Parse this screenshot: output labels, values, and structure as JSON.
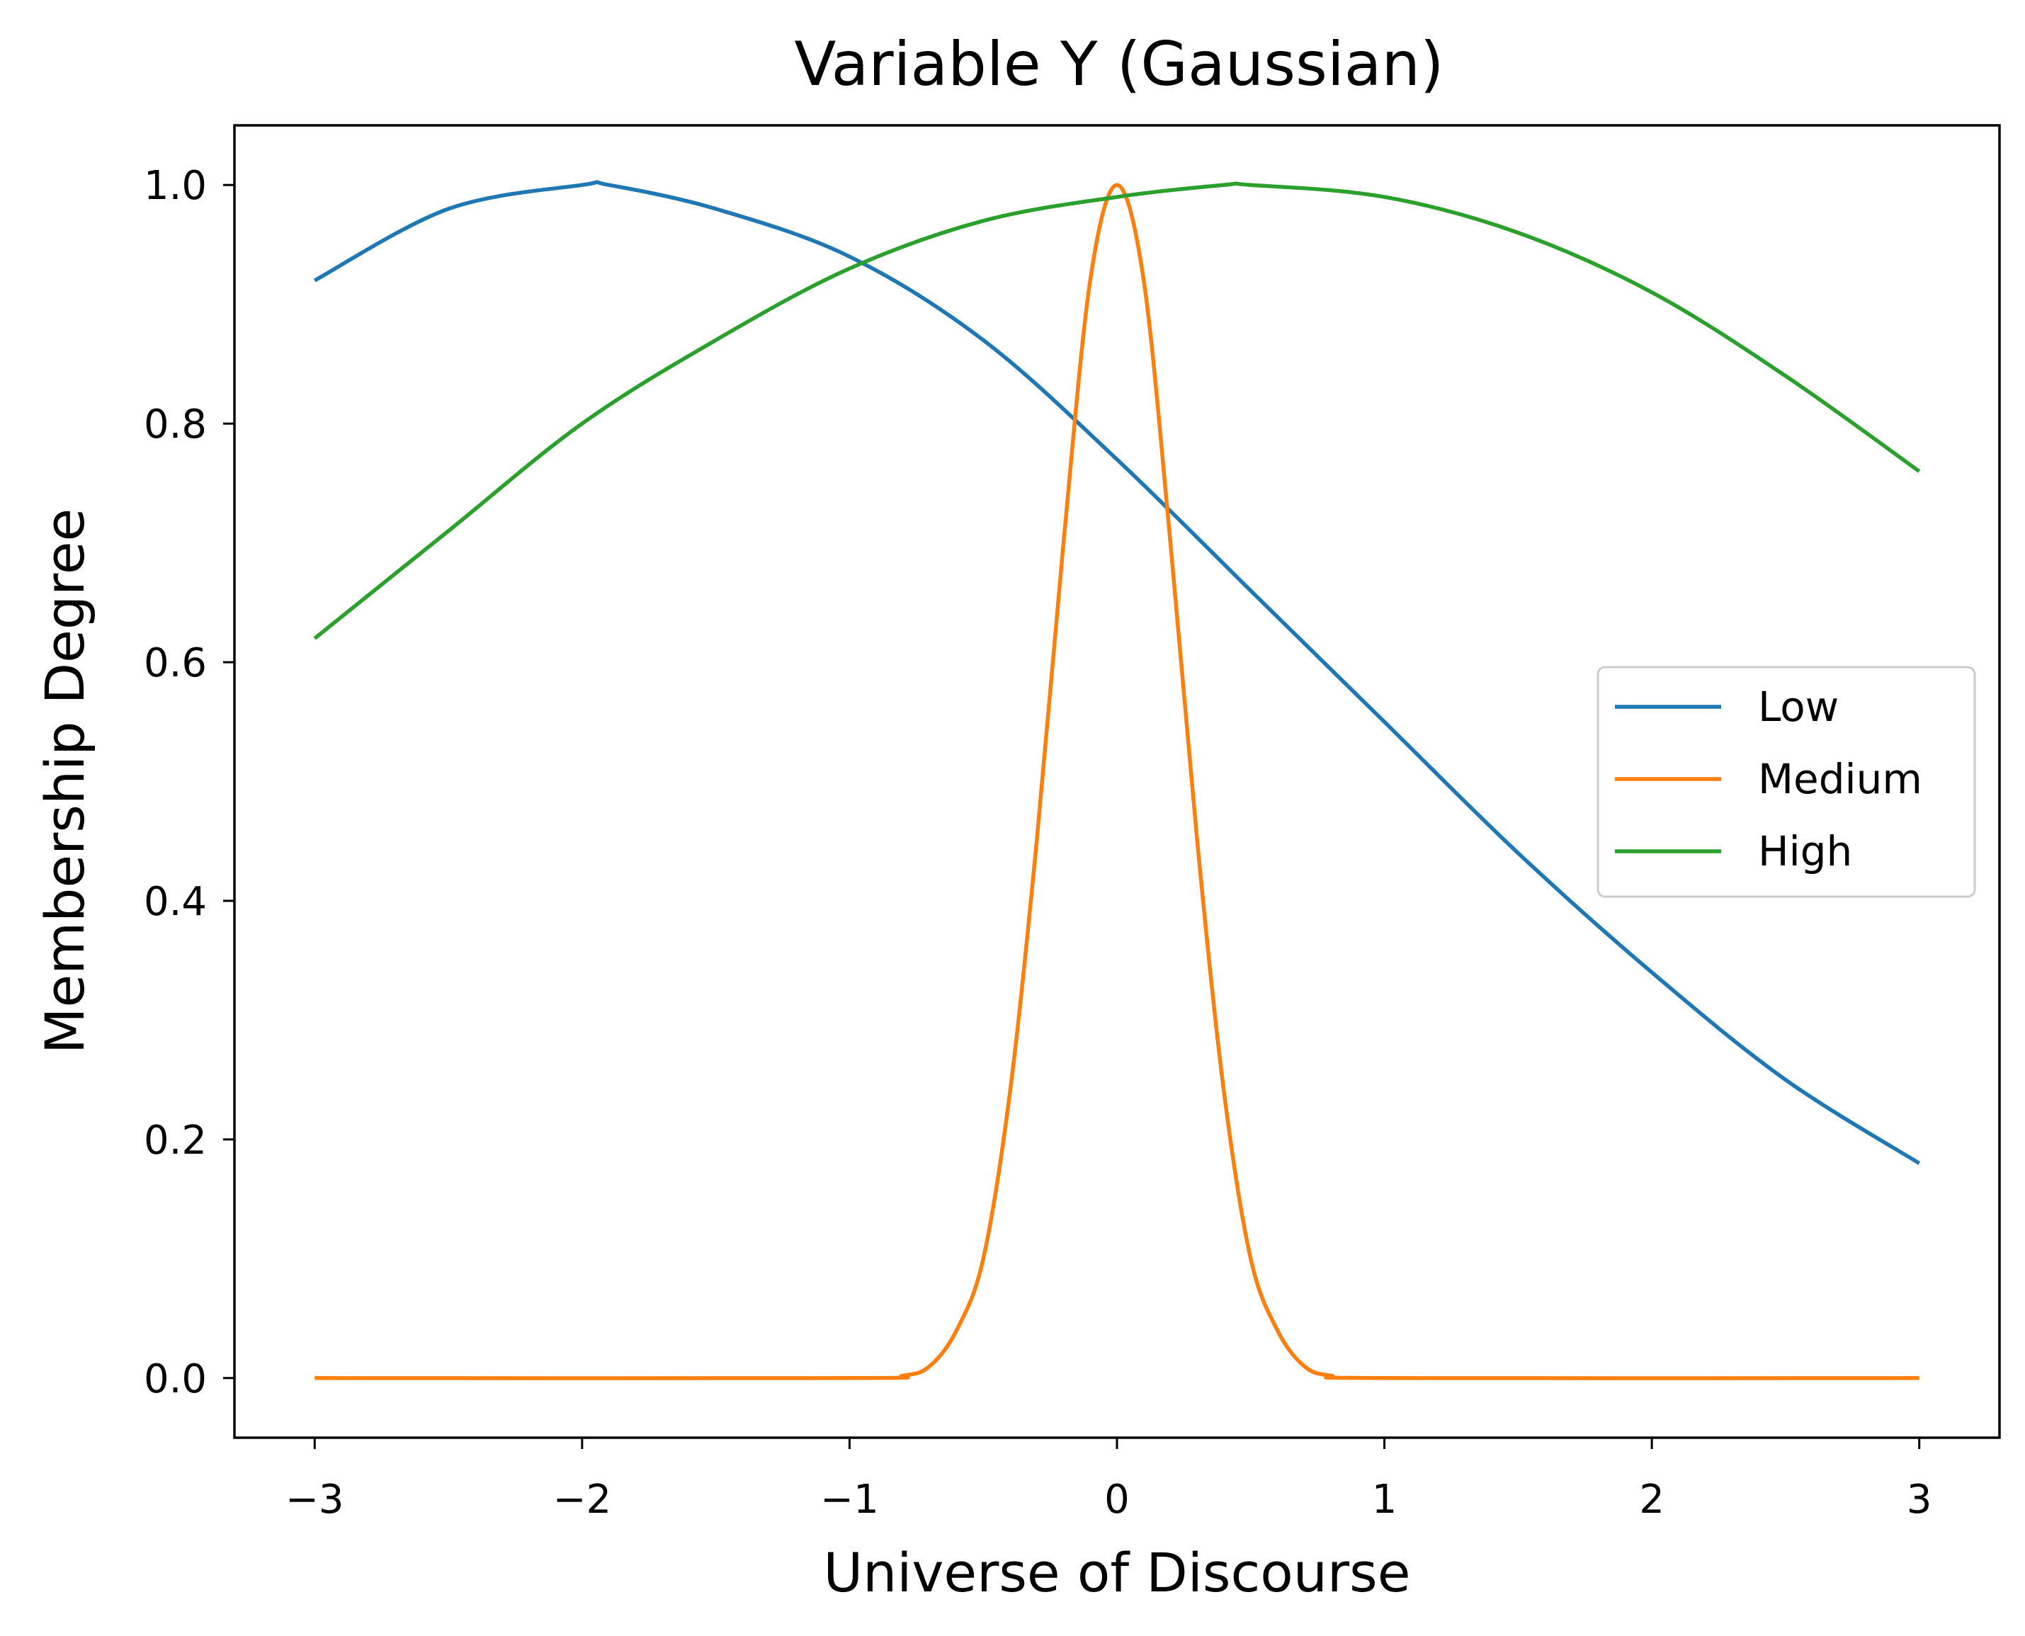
{
  "chart_data": {
    "type": "line",
    "title": "Variable Y (Gaussian)",
    "xlabel": "Universe of Discourse",
    "ylabel": "Membership Degree",
    "xlim": [
      -3.3,
      3.3
    ],
    "ylim": [
      -0.05,
      1.05
    ],
    "xticks": [
      -3,
      -2,
      -1,
      0,
      1,
      2,
      3
    ],
    "xtick_labels": [
      "−3",
      "−2",
      "−1",
      "0",
      "1",
      "2",
      "3"
    ],
    "yticks": [
      0.0,
      0.2,
      0.4,
      0.6,
      0.8,
      1.0
    ],
    "ytick_labels": [
      "0.0",
      "0.2",
      "0.4",
      "0.6",
      "0.8",
      "1.0"
    ],
    "grid": false,
    "legend_position": "center-right",
    "series": [
      {
        "name": "Low",
        "color": "#1f77b4",
        "x": [
          -3.0,
          -2.5,
          -2.0,
          -1.9,
          -1.5,
          -1.0,
          -0.5,
          0.0,
          0.5,
          1.0,
          1.5,
          2.0,
          2.5,
          3.0
        ],
        "y": [
          0.92,
          0.98,
          1.0,
          1.0,
          0.98,
          0.94,
          0.87,
          0.77,
          0.66,
          0.55,
          0.44,
          0.34,
          0.25,
          0.18
        ]
      },
      {
        "name": "Medium",
        "color": "#ff7f0e",
        "x": [
          -3.0,
          -1.0,
          -0.8,
          -0.7,
          -0.6,
          -0.5,
          -0.4,
          -0.3,
          -0.2,
          -0.1,
          0.0,
          0.1,
          0.2,
          0.3,
          0.4,
          0.5,
          0.6,
          0.7,
          0.8,
          1.0,
          3.0
        ],
        "y": [
          0.0,
          0.0,
          0.002,
          0.01,
          0.04,
          0.1,
          0.24,
          0.45,
          0.7,
          0.92,
          1.0,
          0.92,
          0.7,
          0.45,
          0.24,
          0.1,
          0.04,
          0.01,
          0.002,
          0.0,
          0.0
        ]
      },
      {
        "name": "High",
        "color": "#2ca02c",
        "x": [
          -3.0,
          -2.5,
          -2.0,
          -1.5,
          -1.0,
          -0.5,
          0.0,
          0.4,
          0.5,
          1.0,
          1.5,
          2.0,
          2.5,
          3.0
        ],
        "y": [
          0.62,
          0.71,
          0.8,
          0.87,
          0.93,
          0.97,
          0.99,
          1.0,
          1.0,
          0.99,
          0.96,
          0.91,
          0.84,
          0.76
        ]
      }
    ]
  }
}
